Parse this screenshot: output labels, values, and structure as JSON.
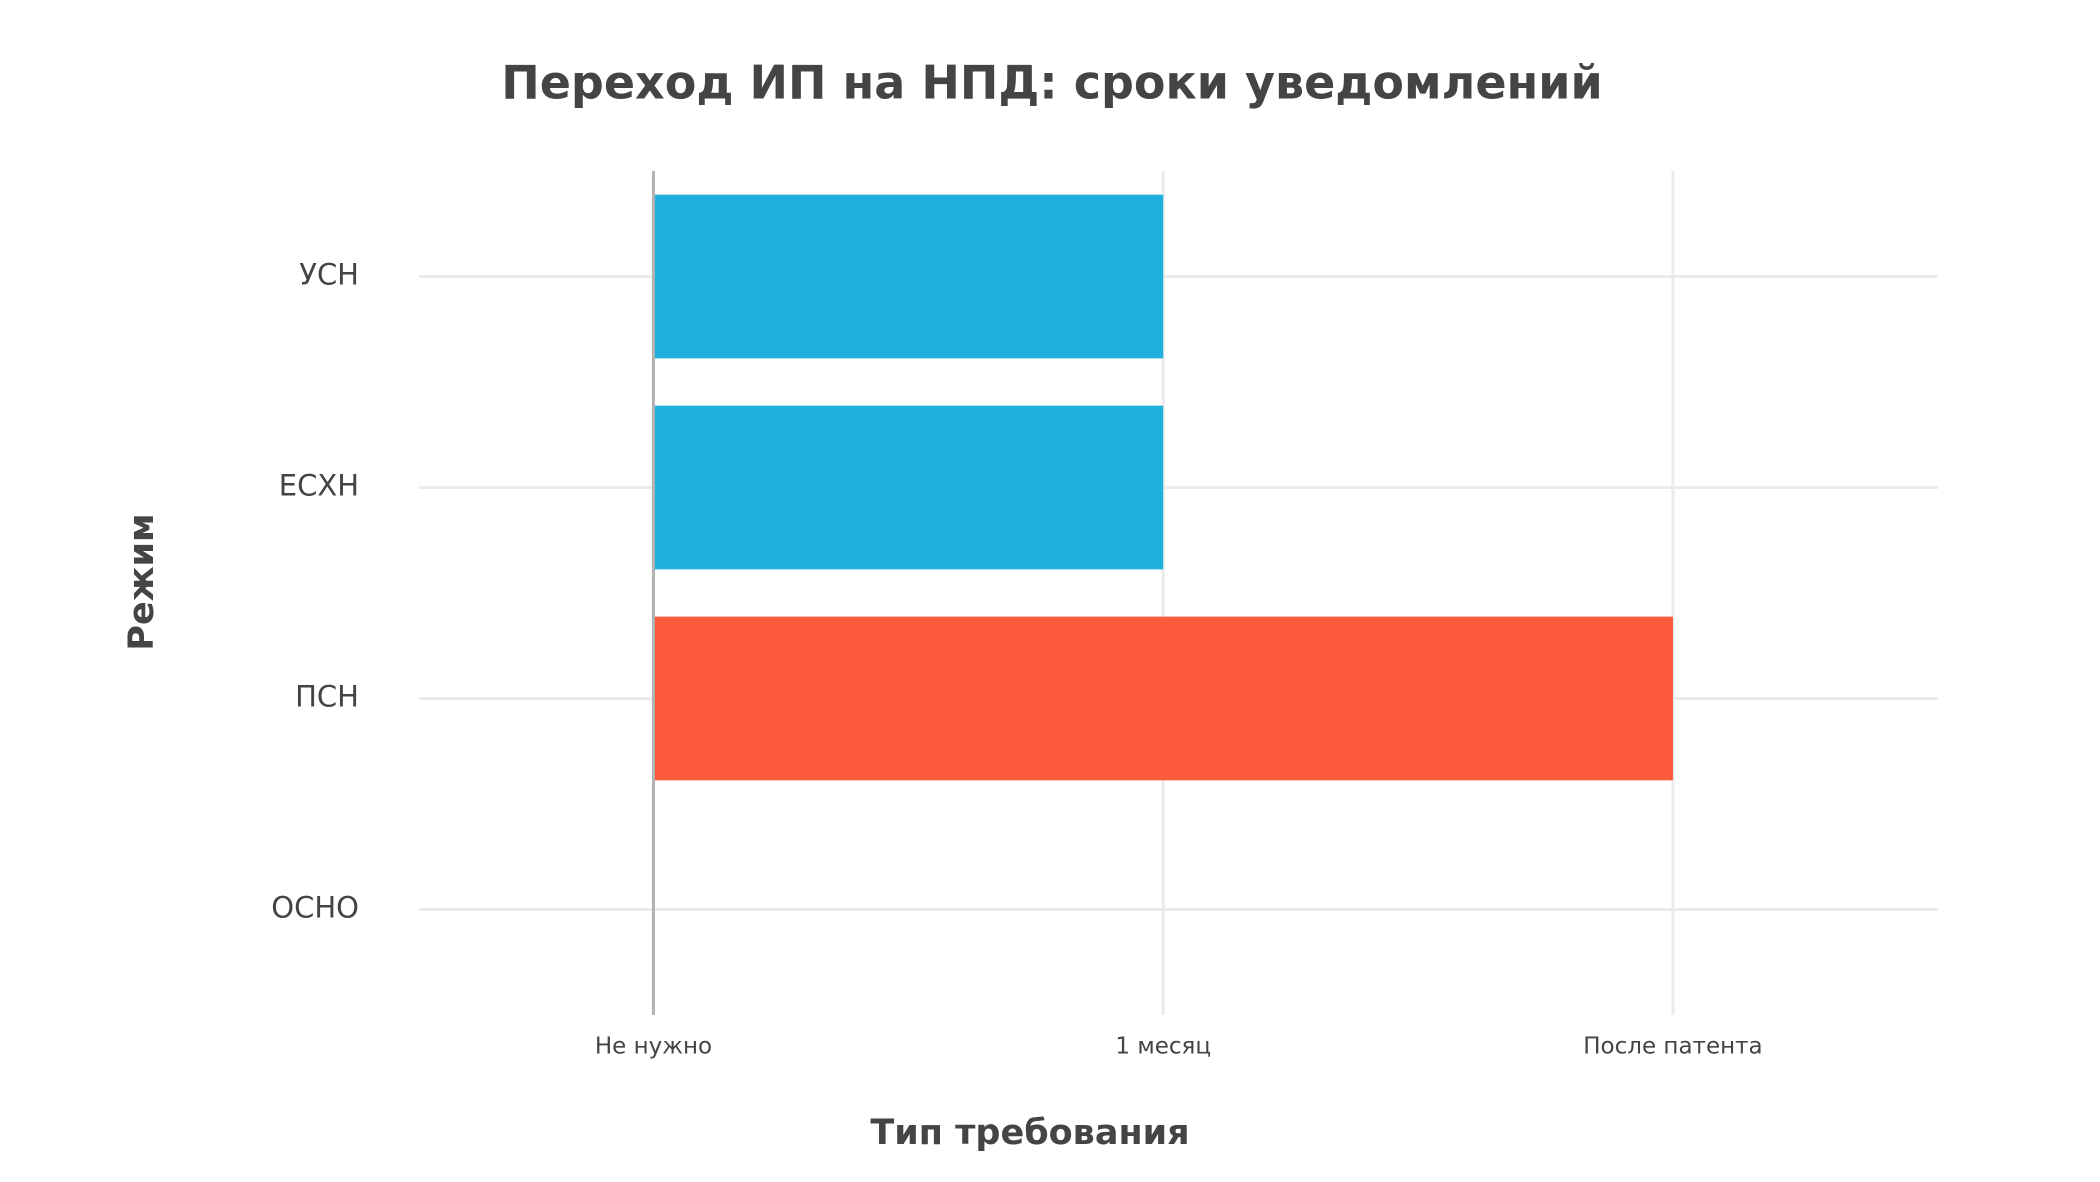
{
  "chart_data": {
    "type": "hbar",
    "title": "Переход ИП на НПД: сроки уведомлений",
    "x_label": "Тип требования",
    "y_label": "Режим",
    "categories": [
      "УСН",
      "ЕСХН",
      "ПСН",
      "ОСНО"
    ],
    "values": [
      1,
      1,
      2,
      0
    ],
    "colors": [
      "#20b0de",
      "#20b0de",
      "#fc593d",
      "#20b0de"
    ],
    "xlim": [
      -0.46,
      2.52
    ],
    "xticks": [
      {
        "value": 0,
        "label": "Не нужно"
      },
      {
        "value": 1,
        "label": "1 месяц"
      },
      {
        "value": 2,
        "label": "После патента"
      }
    ],
    "grid": true
  }
}
